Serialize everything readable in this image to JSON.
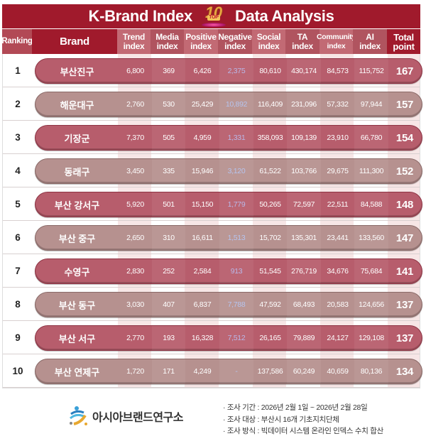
{
  "title": {
    "left": "K-Brand Index",
    "badge_number": "10",
    "badge_label": "TOP",
    "right": "Data Analysis"
  },
  "colors": {
    "header_dark": "#a01a2c",
    "header_light": "#c26a74",
    "pill_odd": "#b75d6c",
    "pill_even": "#b6918f",
    "negative_text": "#b9b8e8"
  },
  "columns": [
    {
      "key": "ranking",
      "label": "Ranking"
    },
    {
      "key": "brand",
      "label": "Brand"
    },
    {
      "key": "trend",
      "label": "Trend\nindex"
    },
    {
      "key": "media",
      "label": "Media\nindex"
    },
    {
      "key": "positive",
      "label": "Positive\nindex"
    },
    {
      "key": "negative",
      "label": "Negative\nindex"
    },
    {
      "key": "social",
      "label": "Social\nindex"
    },
    {
      "key": "ta",
      "label": "TA\nindex"
    },
    {
      "key": "community",
      "label": "Community\nindex"
    },
    {
      "key": "ai",
      "label": "AI\nindex"
    },
    {
      "key": "total",
      "label": "Total\npoint"
    }
  ],
  "rows": [
    {
      "rank": "1",
      "brand": "부산진구",
      "trend": "6,800",
      "media": "369",
      "positive": "6,426",
      "negative": "2,375",
      "social": "80,610",
      "ta": "430,174",
      "community": "84,573",
      "ai": "115,752",
      "total": "167"
    },
    {
      "rank": "2",
      "brand": "해운대구",
      "trend": "2,760",
      "media": "530",
      "positive": "25,429",
      "negative": "10,892",
      "social": "116,409",
      "ta": "231,096",
      "community": "57,332",
      "ai": "97,944",
      "total": "157"
    },
    {
      "rank": "3",
      "brand": "기장군",
      "trend": "7,370",
      "media": "505",
      "positive": "4,959",
      "negative": "1,331",
      "social": "358,093",
      "ta": "109,139",
      "community": "23,910",
      "ai": "66,780",
      "total": "154"
    },
    {
      "rank": "4",
      "brand": "동래구",
      "trend": "3,450",
      "media": "335",
      "positive": "15,946",
      "negative": "3,120",
      "social": "61,522",
      "ta": "103,766",
      "community": "29,675",
      "ai": "111,300",
      "total": "152"
    },
    {
      "rank": "5",
      "brand": "부산 강서구",
      "trend": "5,920",
      "media": "501",
      "positive": "15,150",
      "negative": "1,779",
      "social": "50,265",
      "ta": "72,597",
      "community": "22,511",
      "ai": "84,588",
      "total": "148"
    },
    {
      "rank": "6",
      "brand": "부산 중구",
      "trend": "2,650",
      "media": "310",
      "positive": "16,611",
      "negative": "1,513",
      "social": "15,702",
      "ta": "135,301",
      "community": "23,441",
      "ai": "133,560",
      "total": "147"
    },
    {
      "rank": "7",
      "brand": "수영구",
      "trend": "2,830",
      "media": "252",
      "positive": "2,584",
      "negative": "913",
      "social": "51,545",
      "ta": "276,719",
      "community": "34,676",
      "ai": "75,684",
      "total": "141"
    },
    {
      "rank": "8",
      "brand": "부산 동구",
      "trend": "3,030",
      "media": "407",
      "positive": "6,837",
      "negative": "7,788",
      "social": "47,592",
      "ta": "68,493",
      "community": "20,583",
      "ai": "124,656",
      "total": "137"
    },
    {
      "rank": "9",
      "brand": "부산 서구",
      "trend": "2,770",
      "media": "193",
      "positive": "16,328",
      "negative": "7,512",
      "social": "26,165",
      "ta": "79,889",
      "community": "24,127",
      "ai": "129,108",
      "total": "137"
    },
    {
      "rank": "10",
      "brand": "부산 연제구",
      "trend": "1,720",
      "media": "171",
      "positive": "4,249",
      "negative": "-",
      "social": "137,586",
      "ta": "60,249",
      "community": "40,659",
      "ai": "80,136",
      "total": "134"
    }
  ],
  "footer": {
    "logo_text": "아시아브랜드연구소",
    "notes": [
      "· 조사 기간 : 2026년 2월 1일 ~ 2026년 2월 28일",
      "· 조사 대상 : 부산시 16개 기초지치단체",
      "· 조사 방식 : 빅데이터 시스템 온라인 인덱스 수치 합산"
    ]
  }
}
